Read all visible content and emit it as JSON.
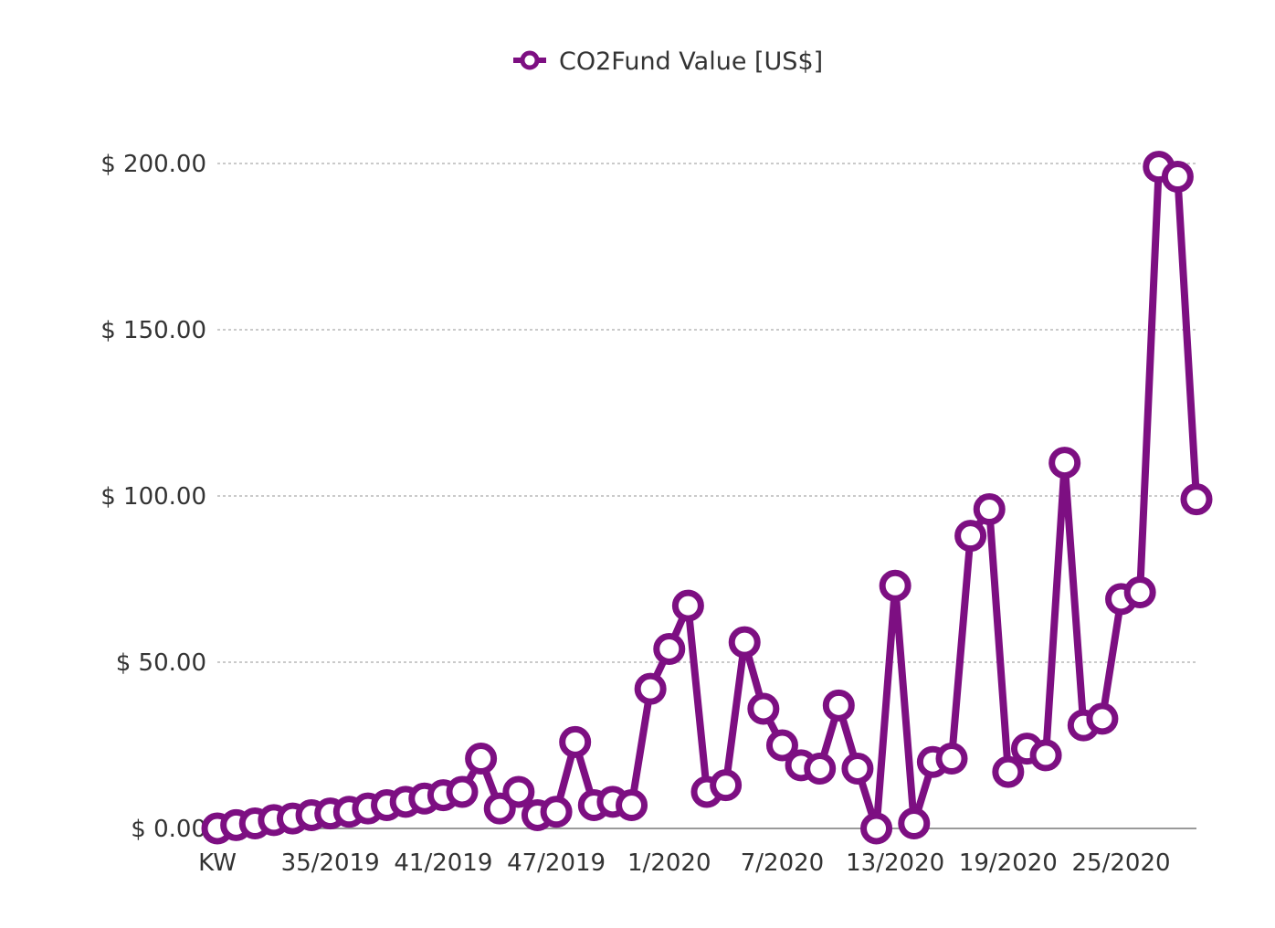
{
  "chart_data": {
    "type": "line",
    "legend": {
      "position": "top-center",
      "entries": [
        "CO2Fund Value [US$]"
      ]
    },
    "ylim": [
      0,
      200
    ],
    "grid": true,
    "y_ticks": [
      {
        "value": 0,
        "label": "$ 0.00"
      },
      {
        "value": 50,
        "label": "$ 50.00"
      },
      {
        "value": 100,
        "label": "$ 100.00"
      },
      {
        "value": 150,
        "label": "$ 150.00"
      },
      {
        "value": 200,
        "label": "$ 200.00"
      }
    ],
    "x_ticks": [
      {
        "index": 0,
        "label": "KW"
      },
      {
        "index": 6,
        "label": "35/2019"
      },
      {
        "index": 12,
        "label": "41/2019"
      },
      {
        "index": 18,
        "label": "47/2019"
      },
      {
        "index": 24,
        "label": "1/2020"
      },
      {
        "index": 30,
        "label": "7/2020"
      },
      {
        "index": 36,
        "label": "13/2020"
      },
      {
        "index": 42,
        "label": "19/2020"
      },
      {
        "index": 48,
        "label": "25/2020"
      }
    ],
    "series": [
      {
        "name": "CO2Fund Value [US$]",
        "color": "#7d0f82",
        "values": [
          0,
          1,
          1.5,
          2.5,
          3,
          4,
          4.5,
          5,
          6,
          7,
          8,
          9,
          10,
          11,
          21,
          6,
          11,
          4,
          5,
          26,
          7,
          8,
          7,
          42,
          54,
          67,
          11,
          13,
          56,
          36,
          25,
          19,
          18,
          37,
          18,
          0,
          73,
          1.5,
          20,
          21,
          88,
          96,
          17,
          24,
          22,
          110,
          31,
          33,
          69,
          71,
          199,
          196,
          99
        ]
      }
    ]
  }
}
